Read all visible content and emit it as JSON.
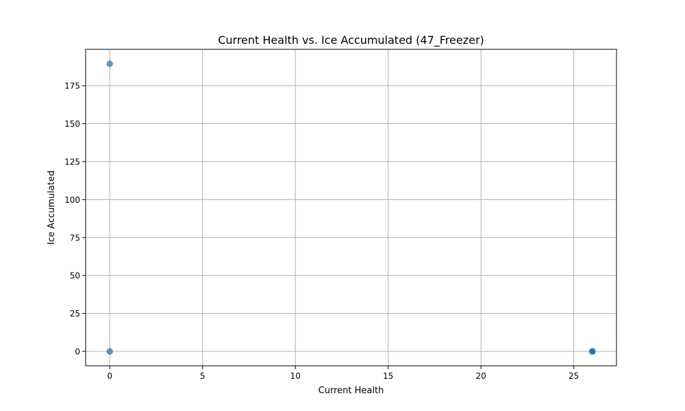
{
  "chart_data": {
    "type": "scatter",
    "title": "Current Health vs. Ice Accumulated (47_Freezer)",
    "xlabel": "Current Health",
    "ylabel": "Ice Accumulated",
    "xlim": [
      -1.3,
      27.3
    ],
    "ylim": [
      -9.5,
      199
    ],
    "xticks": [
      0,
      5,
      10,
      15,
      20,
      25
    ],
    "yticks": [
      0,
      25,
      50,
      75,
      100,
      125,
      150,
      175
    ],
    "grid": true,
    "marker_color": "#1f77b4",
    "points": [
      {
        "x": 0,
        "y": 189.5
      },
      {
        "x": 0,
        "y": 0
      },
      {
        "x": 26,
        "y": 0
      },
      {
        "x": 26,
        "y": 0
      },
      {
        "x": 26,
        "y": 0
      },
      {
        "x": 26,
        "y": 0
      },
      {
        "x": 26,
        "y": 0
      }
    ]
  }
}
